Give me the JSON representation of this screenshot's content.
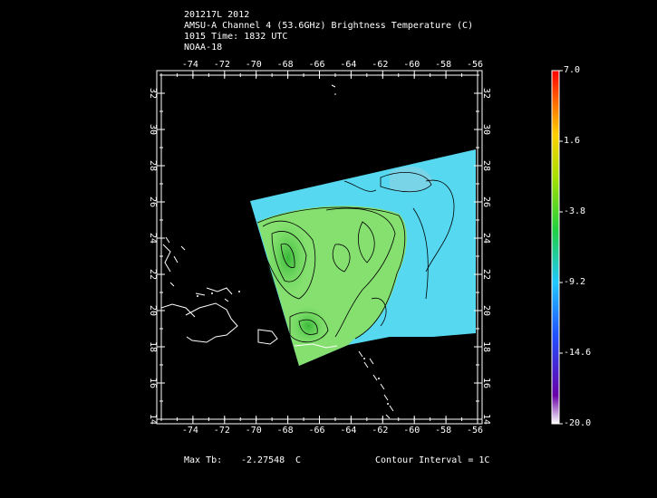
{
  "header": {
    "line1": "201217L 2012",
    "line2": "AMSU-A Channel 4 (53.6GHz) Brightness Temperature (C)",
    "line3": "1015 Time: 1832 UTC",
    "line4": "NOAA-18"
  },
  "map": {
    "lon_labels": [
      "-74",
      "-72",
      "-70",
      "-68",
      "-66",
      "-64",
      "-62",
      "-60",
      "-58",
      "-56"
    ],
    "lat_labels": [
      "14",
      "16",
      "18",
      "20",
      "22",
      "24",
      "26",
      "28",
      "30",
      "32"
    ],
    "lon_range": [
      -76,
      -56
    ],
    "lat_range": [
      14,
      33
    ]
  },
  "colorbar": {
    "labels": [
      "7.0",
      "1.6",
      "-3.8",
      "-9.2",
      "-14.6",
      "-20.0"
    ],
    "min": -20.0,
    "max": 7.0
  },
  "footer": {
    "max_label": "Max Tb:",
    "max_value": "-2.27548",
    "max_unit": "C",
    "contour": "Contour Interval = 1C"
  },
  "colors": {
    "swath_cold": "#55d8f0",
    "swath_mid": "#7ee07a",
    "swath_warm": "#3ec43a",
    "coast": "#ffffff"
  }
}
